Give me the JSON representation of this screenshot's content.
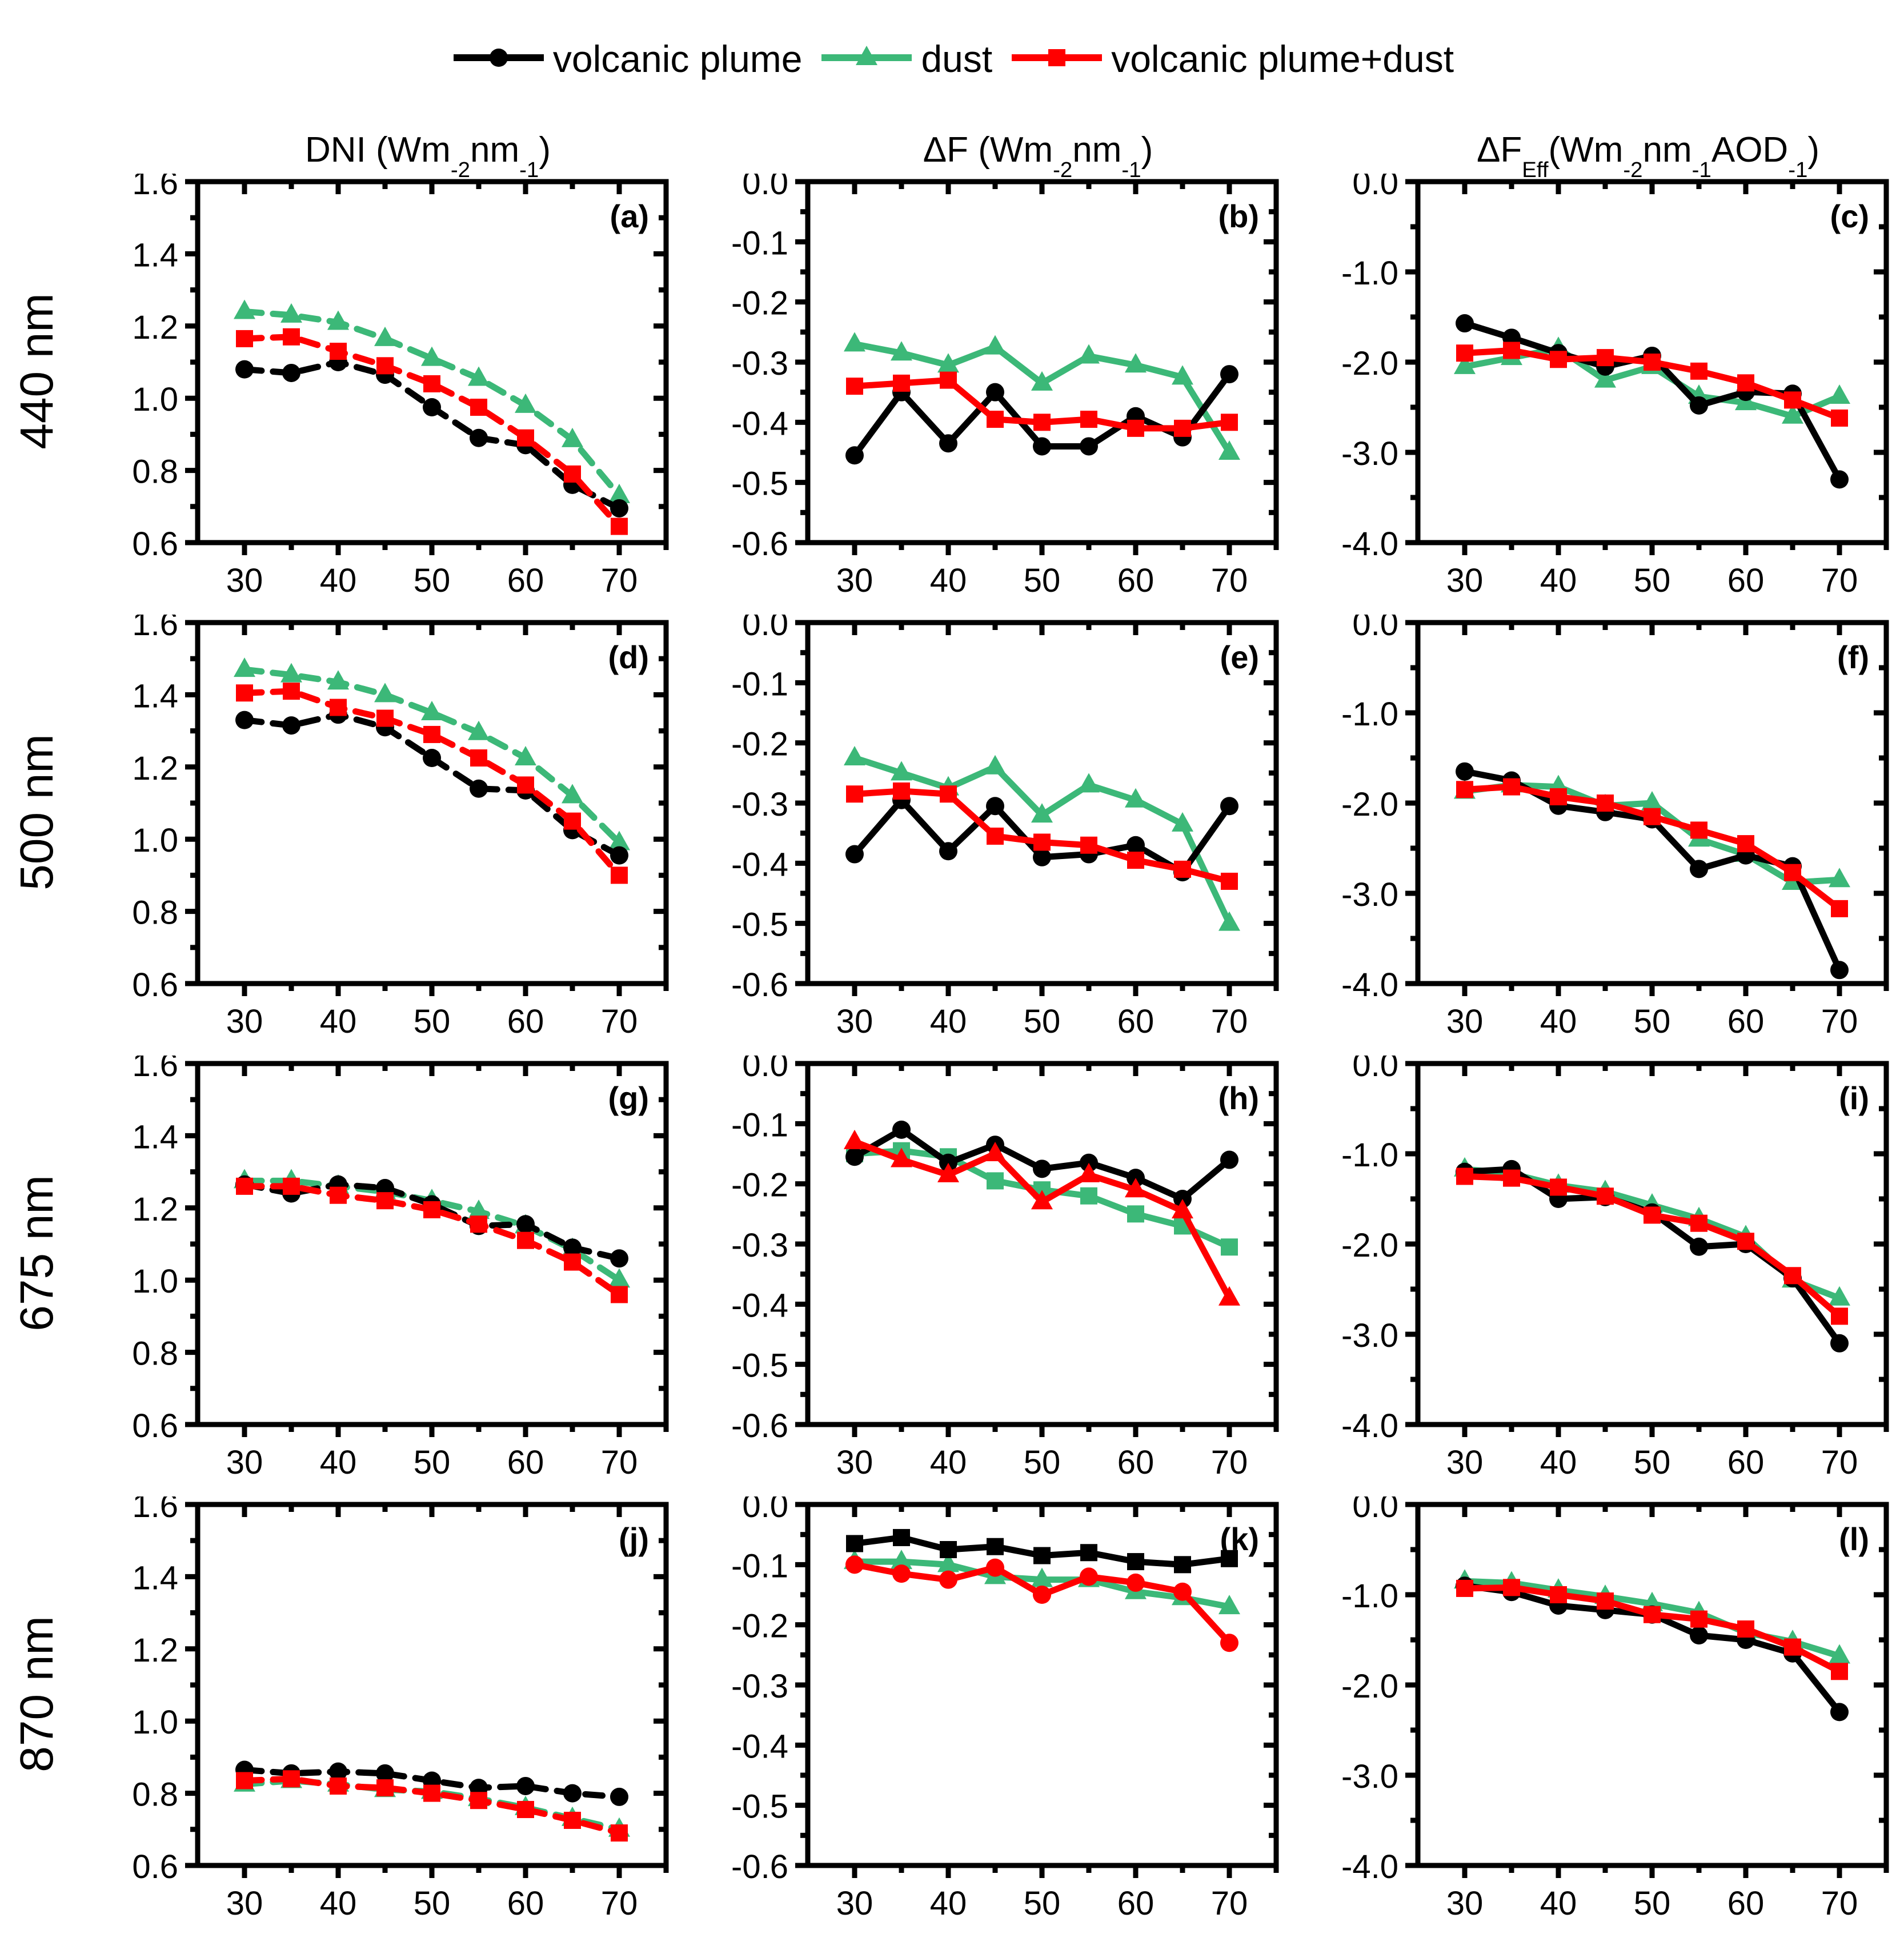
{
  "legend": {
    "items": [
      {
        "label": "volcanic plume",
        "color": "#000000",
        "marker": "circle"
      },
      {
        "label": "dust",
        "color": "#3CB878",
        "marker": "triangle"
      },
      {
        "label": "volcanic plume+dust",
        "color": "#FF0000",
        "marker": "square"
      }
    ]
  },
  "rows": [
    "440 nm",
    "500 nm",
    "675 nm",
    "870 nm"
  ],
  "columns": [
    {
      "title_parts": [
        {
          "t": "DNI (Wm"
        },
        {
          "s": "-2"
        },
        {
          "t": "nm"
        },
        {
          "s": "-1"
        },
        {
          "t": ")"
        }
      ],
      "ylim": [
        0.6,
        1.6
      ],
      "yticks": [
        {
          "v": 1.6,
          "label": "1.6"
        },
        {
          "v": 1.4,
          "label": "1.4"
        },
        {
          "v": 1.2,
          "label": "1.2"
        },
        {
          "v": 1.0,
          "label": "1.0"
        },
        {
          "v": 0.8,
          "label": "0.8"
        },
        {
          "v": 0.6,
          "label": "0.6"
        }
      ],
      "yminor": 0.1,
      "dashed": true
    },
    {
      "title_parts": [
        {
          "t": "ΔF (Wm"
        },
        {
          "s": "-2"
        },
        {
          "t": "nm"
        },
        {
          "s": "-1"
        },
        {
          "t": ")"
        }
      ],
      "ylim": [
        -0.6,
        0.0
      ],
      "yticks": [
        {
          "v": 0.0,
          "label": "0.0"
        },
        {
          "v": -0.1,
          "label": "-0.1"
        },
        {
          "v": -0.2,
          "label": "-0.2"
        },
        {
          "v": -0.3,
          "label": "-0.3"
        },
        {
          "v": -0.4,
          "label": "-0.4"
        },
        {
          "v": -0.5,
          "label": "-0.5"
        },
        {
          "v": -0.6,
          "label": "-0.6"
        }
      ],
      "yminor": 0.05,
      "dashed": false
    },
    {
      "title_parts": [
        {
          "t": "ΔF"
        },
        {
          "s": "Eff"
        },
        {
          "t": " (Wm"
        },
        {
          "s": "-2"
        },
        {
          "t": "nm"
        },
        {
          "s": "-1"
        },
        {
          "t": "AOD"
        },
        {
          "s": "-1"
        },
        {
          "t": ")"
        }
      ],
      "ylim": [
        -4.0,
        0.0
      ],
      "yticks": [
        {
          "v": 0.0,
          "label": "0.0"
        },
        {
          "v": -1.0,
          "label": "-1.0"
        },
        {
          "v": -2.0,
          "label": "-2.0"
        },
        {
          "v": -3.0,
          "label": "-3.0"
        },
        {
          "v": -4.0,
          "label": "-4.0"
        }
      ],
      "yminor": 0.5,
      "dashed": false
    }
  ],
  "chart_data": [
    {
      "type": "line",
      "label": "(a)",
      "row": 0,
      "col": 0,
      "xlim": [
        25,
        75
      ],
      "x": [
        30,
        35,
        40,
        45,
        50,
        55,
        60,
        65,
        70
      ],
      "xticks": [
        30,
        40,
        50,
        60,
        70
      ],
      "xminor": [
        35,
        45,
        55,
        65,
        75
      ],
      "markers": [
        "circle",
        "triangle",
        "square"
      ],
      "series": [
        {
          "name": "volcanic plume",
          "color": "#000000",
          "values": [
            1.08,
            1.07,
            1.1,
            1.065,
            0.975,
            0.89,
            0.87,
            0.76,
            0.695
          ]
        },
        {
          "name": "dust",
          "color": "#3CB878",
          "values": [
            1.24,
            1.23,
            1.21,
            1.165,
            1.11,
            1.055,
            0.98,
            0.885,
            0.73
          ]
        },
        {
          "name": "volcanic plume+dust",
          "color": "#FF0000",
          "values": [
            1.165,
            1.17,
            1.13,
            1.09,
            1.04,
            0.975,
            0.89,
            0.79,
            0.645
          ]
        }
      ]
    },
    {
      "type": "line",
      "label": "(b)",
      "row": 0,
      "col": 1,
      "xlim": [
        25,
        75
      ],
      "x": [
        30,
        35,
        40,
        45,
        50,
        55,
        60,
        65,
        70
      ],
      "xticks": [
        30,
        40,
        50,
        60,
        70
      ],
      "xminor": [
        35,
        45,
        55,
        65,
        75
      ],
      "markers": [
        "circle",
        "triangle",
        "square"
      ],
      "series": [
        {
          "name": "volcanic plume",
          "color": "#000000",
          "values": [
            -0.455,
            -0.35,
            -0.435,
            -0.35,
            -0.44,
            -0.44,
            -0.39,
            -0.425,
            -0.32
          ]
        },
        {
          "name": "dust",
          "color": "#3CB878",
          "values": [
            -0.27,
            -0.285,
            -0.305,
            -0.275,
            -0.335,
            -0.29,
            -0.305,
            -0.325,
            -0.45
          ]
        },
        {
          "name": "volcanic plume+dust",
          "color": "#FF0000",
          "values": [
            -0.34,
            -0.335,
            -0.33,
            -0.395,
            -0.4,
            -0.395,
            -0.41,
            -0.41,
            -0.4
          ]
        }
      ]
    },
    {
      "type": "line",
      "label": "(c)",
      "row": 0,
      "col": 2,
      "xlim": [
        25,
        75
      ],
      "x": [
        30,
        35,
        40,
        45,
        50,
        55,
        60,
        65,
        70
      ],
      "xticks": [
        30,
        40,
        50,
        60,
        70
      ],
      "xminor": [
        35,
        45,
        55,
        65,
        75
      ],
      "markers": [
        "circle",
        "triangle",
        "square"
      ],
      "series": [
        {
          "name": "volcanic plume",
          "color": "#000000",
          "values": [
            -1.57,
            -1.73,
            -1.9,
            -2.05,
            -1.93,
            -2.48,
            -2.33,
            -2.35,
            -3.3
          ]
        },
        {
          "name": "dust",
          "color": "#3CB878",
          "values": [
            -2.05,
            -1.95,
            -1.85,
            -2.2,
            -2.05,
            -2.38,
            -2.45,
            -2.6,
            -2.38
          ]
        },
        {
          "name": "volcanic plume+dust",
          "color": "#FF0000",
          "values": [
            -1.9,
            -1.87,
            -1.97,
            -1.95,
            -2.0,
            -2.1,
            -2.23,
            -2.42,
            -2.62
          ]
        }
      ]
    },
    {
      "type": "line",
      "label": "(d)",
      "row": 1,
      "col": 0,
      "xlim": [
        25,
        75
      ],
      "x": [
        30,
        35,
        40,
        45,
        50,
        55,
        60,
        65,
        70
      ],
      "xticks": [
        30,
        40,
        50,
        60,
        70
      ],
      "xminor": [
        35,
        45,
        55,
        65,
        75
      ],
      "markers": [
        "circle",
        "triangle",
        "square"
      ],
      "series": [
        {
          "name": "volcanic plume",
          "color": "#000000",
          "values": [
            1.33,
            1.315,
            1.345,
            1.31,
            1.225,
            1.14,
            1.135,
            1.025,
            0.955
          ]
        },
        {
          "name": "dust",
          "color": "#3CB878",
          "values": [
            1.47,
            1.455,
            1.435,
            1.4,
            1.35,
            1.295,
            1.225,
            1.12,
            0.99
          ]
        },
        {
          "name": "volcanic plume+dust",
          "color": "#FF0000",
          "values": [
            1.405,
            1.41,
            1.365,
            1.335,
            1.29,
            1.225,
            1.15,
            1.05,
            0.9
          ]
        }
      ]
    },
    {
      "type": "line",
      "label": "(e)",
      "row": 1,
      "col": 1,
      "xlim": [
        25,
        75
      ],
      "x": [
        30,
        35,
        40,
        45,
        50,
        55,
        60,
        65,
        70
      ],
      "xticks": [
        30,
        40,
        50,
        60,
        70
      ],
      "xminor": [
        35,
        45,
        55,
        65,
        75
      ],
      "markers": [
        "circle",
        "triangle",
        "square"
      ],
      "series": [
        {
          "name": "volcanic plume",
          "color": "#000000",
          "values": [
            -0.385,
            -0.295,
            -0.38,
            -0.305,
            -0.39,
            -0.385,
            -0.37,
            -0.415,
            -0.305
          ]
        },
        {
          "name": "dust",
          "color": "#3CB878",
          "values": [
            -0.225,
            -0.25,
            -0.275,
            -0.24,
            -0.32,
            -0.27,
            -0.295,
            -0.335,
            -0.5
          ]
        },
        {
          "name": "volcanic plume+dust",
          "color": "#FF0000",
          "values": [
            -0.285,
            -0.28,
            -0.285,
            -0.355,
            -0.365,
            -0.37,
            -0.395,
            -0.41,
            -0.43
          ]
        }
      ]
    },
    {
      "type": "line",
      "label": "(f)",
      "row": 1,
      "col": 2,
      "xlim": [
        25,
        75
      ],
      "x": [
        30,
        35,
        40,
        45,
        50,
        55,
        60,
        65,
        70
      ],
      "xticks": [
        30,
        40,
        50,
        60,
        70
      ],
      "xminor": [
        35,
        45,
        55,
        65,
        75
      ],
      "markers": [
        "circle",
        "triangle",
        "square"
      ],
      "series": [
        {
          "name": "volcanic plume",
          "color": "#000000",
          "values": [
            -1.65,
            -1.75,
            -2.03,
            -2.1,
            -2.18,
            -2.73,
            -2.58,
            -2.7,
            -3.85
          ]
        },
        {
          "name": "dust",
          "color": "#3CB878",
          "values": [
            -1.87,
            -1.8,
            -1.82,
            -2.03,
            -2.0,
            -2.4,
            -2.57,
            -2.88,
            -2.85
          ]
        },
        {
          "name": "volcanic plume+dust",
          "color": "#FF0000",
          "values": [
            -1.85,
            -1.82,
            -1.93,
            -2.0,
            -2.15,
            -2.3,
            -2.45,
            -2.77,
            -3.17
          ]
        }
      ]
    },
    {
      "type": "line",
      "label": "(g)",
      "row": 2,
      "col": 0,
      "xlim": [
        25,
        75
      ],
      "x": [
        30,
        35,
        40,
        45,
        50,
        55,
        60,
        65,
        70
      ],
      "xticks": [
        30,
        40,
        50,
        60,
        70
      ],
      "xminor": [
        35,
        45,
        55,
        65,
        75
      ],
      "markers": [
        "circle",
        "triangle",
        "square"
      ],
      "series": [
        {
          "name": "volcanic plume",
          "color": "#000000",
          "values": [
            1.265,
            1.24,
            1.265,
            1.255,
            1.21,
            1.15,
            1.155,
            1.09,
            1.06
          ]
        },
        {
          "name": "dust",
          "color": "#3CB878",
          "values": [
            1.275,
            1.275,
            1.26,
            1.245,
            1.22,
            1.19,
            1.15,
            1.085,
            1.0
          ]
        },
        {
          "name": "volcanic plume+dust",
          "color": "#FF0000",
          "values": [
            1.26,
            1.26,
            1.235,
            1.22,
            1.195,
            1.155,
            1.11,
            1.05,
            0.96
          ]
        }
      ]
    },
    {
      "type": "line",
      "label": "(h)",
      "row": 2,
      "col": 1,
      "xlim": [
        25,
        75
      ],
      "x": [
        30,
        35,
        40,
        45,
        50,
        55,
        60,
        65,
        70
      ],
      "xticks": [
        30,
        40,
        50,
        60,
        70
      ],
      "xminor": [
        35,
        45,
        55,
        65,
        75
      ],
      "markers": [
        "circle",
        "square",
        "triangle"
      ],
      "series": [
        {
          "name": "volcanic plume",
          "color": "#000000",
          "values": [
            -0.155,
            -0.11,
            -0.165,
            -0.135,
            -0.175,
            -0.165,
            -0.19,
            -0.225,
            -0.16
          ]
        },
        {
          "name": "dust",
          "color": "#3CB878",
          "values": [
            -0.15,
            -0.145,
            -0.155,
            -0.195,
            -0.21,
            -0.22,
            -0.25,
            -0.27,
            -0.305
          ]
        },
        {
          "name": "volcanic plume+dust",
          "color": "#FF0000",
          "values": [
            -0.13,
            -0.16,
            -0.185,
            -0.15,
            -0.23,
            -0.185,
            -0.21,
            -0.245,
            -0.39
          ]
        }
      ]
    },
    {
      "type": "line",
      "label": "(i)",
      "row": 2,
      "col": 2,
      "xlim": [
        25,
        75
      ],
      "x": [
        30,
        35,
        40,
        45,
        50,
        55,
        60,
        65,
        70
      ],
      "xticks": [
        30,
        40,
        50,
        60,
        70
      ],
      "xminor": [
        35,
        45,
        55,
        65,
        75
      ],
      "markers": [
        "circle",
        "triangle",
        "square"
      ],
      "series": [
        {
          "name": "volcanic plume",
          "color": "#000000",
          "values": [
            -1.2,
            -1.17,
            -1.5,
            -1.48,
            -1.65,
            -2.03,
            -2.0,
            -2.38,
            -3.1
          ]
        },
        {
          "name": "dust",
          "color": "#3CB878",
          "values": [
            -1.17,
            -1.22,
            -1.35,
            -1.42,
            -1.57,
            -1.72,
            -1.92,
            -2.4,
            -2.6
          ]
        },
        {
          "name": "volcanic plume+dust",
          "color": "#FF0000",
          "values": [
            -1.25,
            -1.27,
            -1.37,
            -1.47,
            -1.68,
            -1.77,
            -1.97,
            -2.35,
            -2.8
          ]
        }
      ]
    },
    {
      "type": "line",
      "label": "(j)",
      "row": 3,
      "col": 0,
      "xlim": [
        25,
        75
      ],
      "x": [
        30,
        35,
        40,
        45,
        50,
        55,
        60,
        65,
        70
      ],
      "xticks": [
        30,
        40,
        50,
        60,
        70
      ],
      "xminor": [
        35,
        45,
        55,
        65,
        75
      ],
      "markers": [
        "circle",
        "triangle",
        "square"
      ],
      "series": [
        {
          "name": "volcanic plume",
          "color": "#000000",
          "values": [
            0.865,
            0.855,
            0.86,
            0.855,
            0.835,
            0.815,
            0.82,
            0.8,
            0.79
          ]
        },
        {
          "name": "dust",
          "color": "#3CB878",
          "values": [
            0.825,
            0.835,
            0.825,
            0.81,
            0.805,
            0.785,
            0.76,
            0.73,
            0.7
          ]
        },
        {
          "name": "volcanic plume+dust",
          "color": "#FF0000",
          "values": [
            0.835,
            0.84,
            0.82,
            0.815,
            0.8,
            0.78,
            0.755,
            0.725,
            0.69
          ]
        }
      ]
    },
    {
      "type": "line",
      "label": "(k)",
      "row": 3,
      "col": 1,
      "xlim": [
        25,
        75
      ],
      "x": [
        30,
        35,
        40,
        45,
        50,
        55,
        60,
        65,
        70
      ],
      "xticks": [
        30,
        40,
        50,
        60,
        70
      ],
      "xminor": [
        35,
        45,
        55,
        65,
        75
      ],
      "markers": [
        "square",
        "triangle",
        "circle"
      ],
      "series": [
        {
          "name": "volcanic plume",
          "color": "#000000",
          "values": [
            -0.065,
            -0.055,
            -0.075,
            -0.07,
            -0.085,
            -0.08,
            -0.095,
            -0.1,
            -0.09
          ]
        },
        {
          "name": "dust",
          "color": "#3CB878",
          "values": [
            -0.095,
            -0.095,
            -0.1,
            -0.12,
            -0.125,
            -0.125,
            -0.145,
            -0.155,
            -0.17
          ]
        },
        {
          "name": "volcanic plume+dust",
          "color": "#FF0000",
          "values": [
            -0.1,
            -0.115,
            -0.125,
            -0.105,
            -0.15,
            -0.12,
            -0.13,
            -0.145,
            -0.23
          ]
        }
      ]
    },
    {
      "type": "line",
      "label": "(l)",
      "row": 3,
      "col": 2,
      "xlim": [
        25,
        75
      ],
      "x": [
        30,
        35,
        40,
        45,
        50,
        55,
        60,
        65,
        70
      ],
      "xticks": [
        30,
        40,
        50,
        60,
        70
      ],
      "xminor": [
        35,
        45,
        55,
        65,
        75
      ],
      "markers": [
        "circle",
        "triangle",
        "square"
      ],
      "series": [
        {
          "name": "volcanic plume",
          "color": "#000000",
          "values": [
            -0.9,
            -0.97,
            -1.12,
            -1.17,
            -1.22,
            -1.45,
            -1.5,
            -1.65,
            -2.3
          ]
        },
        {
          "name": "dust",
          "color": "#3CB878",
          "values": [
            -0.85,
            -0.87,
            -0.95,
            -1.02,
            -1.1,
            -1.2,
            -1.42,
            -1.52,
            -1.68
          ]
        },
        {
          "name": "volcanic plume+dust",
          "color": "#FF0000",
          "values": [
            -0.93,
            -0.92,
            -1.0,
            -1.07,
            -1.22,
            -1.27,
            -1.38,
            -1.58,
            -1.85
          ]
        }
      ]
    }
  ]
}
